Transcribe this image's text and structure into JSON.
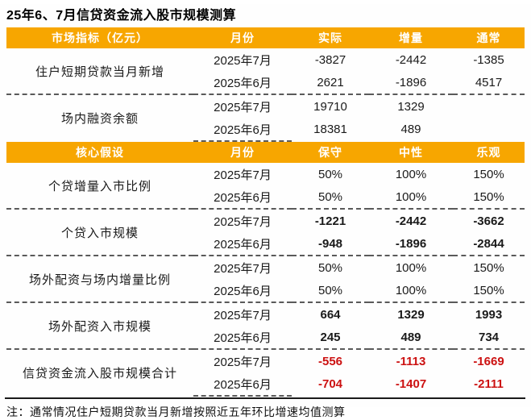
{
  "title": "25年6、7月信贷资金流入股市规模测算",
  "note": "注：通常情况住户短期贷款当月新增按照近五年环比增速均值测算",
  "colors": {
    "header_bg": "#F7A600",
    "header_text": "#FFFFFF",
    "negative_total_red": "#CC1111",
    "body_text": "#1A1A1A"
  },
  "chart_data": {
    "type": "table",
    "title": "25年6、7月信贷资金流入股市规模测算",
    "unit": "亿元"
  },
  "t1": {
    "headers": [
      "市场指标（亿元）",
      "月份",
      "实际",
      "增量",
      "通常"
    ],
    "groups": [
      {
        "indicator": "住户短期贷款当月新增",
        "rows": [
          {
            "month": "2025年7月",
            "values": [
              "-3827",
              "-2442",
              "-1385"
            ]
          },
          {
            "month": "2025年6月",
            "values": [
              "2621",
              "-1896",
              "4517"
            ]
          }
        ]
      },
      {
        "indicator": "场内融资余额",
        "rows": [
          {
            "month": "2025年7月",
            "values": [
              "19710",
              "1329",
              ""
            ]
          },
          {
            "month": "2025年6月",
            "values": [
              "18381",
              "489",
              ""
            ]
          }
        ]
      }
    ]
  },
  "t2": {
    "headers": [
      "核心假设",
      "月份",
      "保守",
      "中性",
      "乐观"
    ],
    "groups": [
      {
        "indicator": "个贷增量入市比例",
        "style": "normal",
        "rows": [
          {
            "month": "2025年7月",
            "values": [
              "50%",
              "100%",
              "150%"
            ]
          },
          {
            "month": "2025年6月",
            "values": [
              "50%",
              "100%",
              "150%"
            ]
          }
        ]
      },
      {
        "indicator": "个贷入市规模",
        "style": "bold",
        "rows": [
          {
            "month": "2025年7月",
            "values": [
              "-1221",
              "-2442",
              "-3662"
            ]
          },
          {
            "month": "2025年6月",
            "values": [
              "-948",
              "-1896",
              "-2844"
            ]
          }
        ]
      },
      {
        "indicator": "场外配资与场内增量比例",
        "style": "normal",
        "rows": [
          {
            "month": "2025年7月",
            "values": [
              "50%",
              "100%",
              "150%"
            ]
          },
          {
            "month": "2025年6月",
            "values": [
              "50%",
              "100%",
              "150%"
            ]
          }
        ]
      },
      {
        "indicator": "场外配资入市规模",
        "style": "bold",
        "rows": [
          {
            "month": "2025年7月",
            "values": [
              "664",
              "1329",
              "1993"
            ]
          },
          {
            "month": "2025年6月",
            "values": [
              "245",
              "489",
              "734"
            ]
          }
        ]
      },
      {
        "indicator": "信贷资金流入股市规模合计",
        "style": "red-bold",
        "rows": [
          {
            "month": "2025年7月",
            "values": [
              "-556",
              "-1113",
              "-1669"
            ]
          },
          {
            "month": "2025年6月",
            "values": [
              "-704",
              "-1407",
              "-2111"
            ]
          }
        ]
      }
    ]
  }
}
